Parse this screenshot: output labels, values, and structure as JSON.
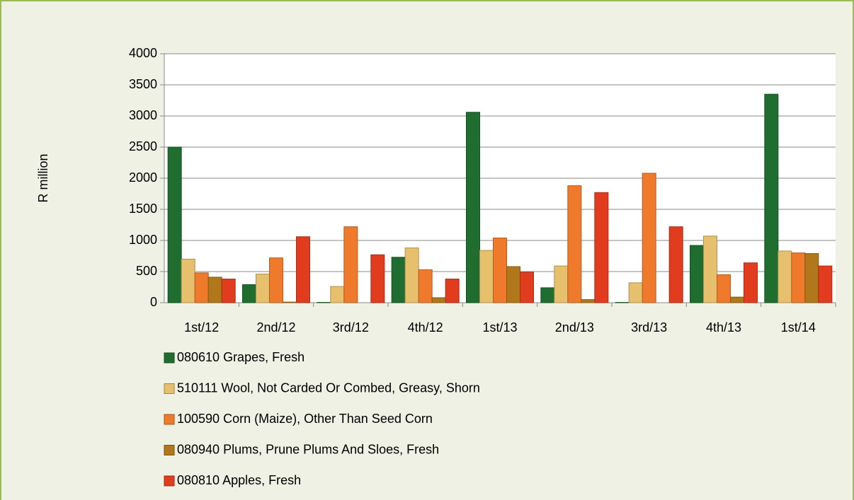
{
  "chart_data": {
    "type": "bar",
    "y_label": "R million",
    "categories": [
      "1st/12",
      "2nd/12",
      "3rd/12",
      "4th/12",
      "1st/13",
      "2nd/13",
      "3rd/13",
      "4th/13",
      "1st/14"
    ],
    "series": [
      {
        "name": "080610 Grapes, Fresh",
        "color": "#1f6e30",
        "values": [
          2500,
          290,
          5,
          730,
          3060,
          240,
          5,
          920,
          3350
        ]
      },
      {
        "name": "510111 Wool, Not Carded Or Combed, Greasy, Shorn",
        "color": "#e6c06c",
        "values": [
          700,
          460,
          260,
          880,
          840,
          590,
          320,
          1070,
          830
        ]
      },
      {
        "name": "100590 Corn (Maize), Other Than Seed Corn",
        "color": "#f07a2c",
        "values": [
          480,
          720,
          1220,
          530,
          1040,
          1880,
          2080,
          450,
          800
        ]
      },
      {
        "name": "080940 Plums, Prune Plums And Sloes, Fresh",
        "color": "#b0781a",
        "values": [
          410,
          10,
          0,
          80,
          580,
          50,
          0,
          90,
          790
        ]
      },
      {
        "name": "080810 Apples, Fresh",
        "color": "#e23c1f",
        "values": [
          380,
          1060,
          770,
          380,
          490,
          1770,
          1220,
          640,
          590
        ]
      }
    ],
    "ylim": [
      0,
      4000
    ],
    "yticks": [
      0,
      500,
      1000,
      1500,
      2000,
      2500,
      3000,
      3500,
      4000
    ],
    "grid": true
  }
}
